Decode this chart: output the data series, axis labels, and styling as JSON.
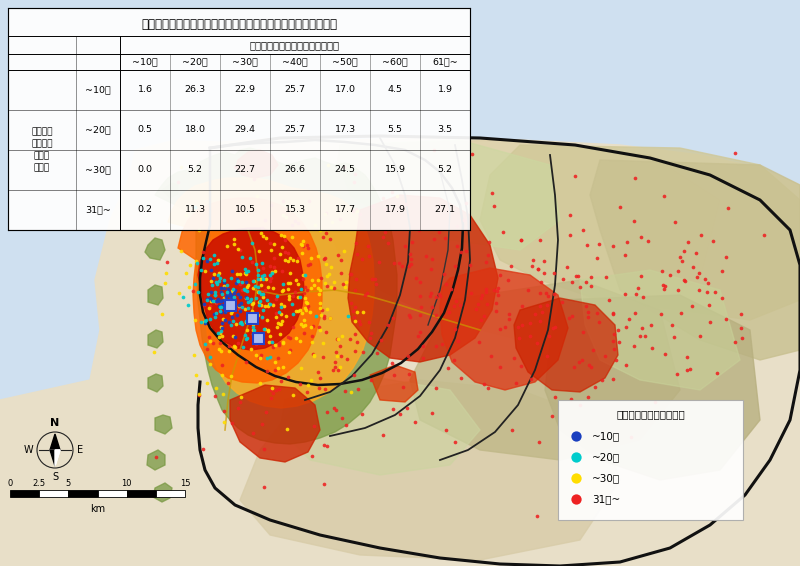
{
  "title": "救急告示病院からの到達圈と実際の搬送時間のクロス表（％）",
  "col_header": "実際の現着から病院着の搬送時間",
  "row_label_main": "救急告示\n医療機関\nからの\n到達圈",
  "col_labels": [
    "~10分",
    "~20分",
    "~30分",
    "~40分",
    "~50分",
    "~60分",
    "61分~"
  ],
  "row_labels": [
    "~10分",
    "~20分",
    "~30分",
    "31分~"
  ],
  "table_data": [
    [
      1.6,
      26.3,
      22.9,
      25.7,
      17.0,
      4.5,
      1.9
    ],
    [
      0.5,
      18.0,
      29.4,
      25.7,
      17.3,
      5.5,
      3.5
    ],
    [
      0.0,
      5.2,
      22.7,
      26.6,
      24.5,
      15.9,
      5.2
    ],
    [
      0.2,
      11.3,
      10.5,
      15.3,
      17.7,
      17.9,
      27.1
    ]
  ],
  "legend_title": "現場着から病院着の時間",
  "legend_items": [
    {
      "label": "~10分",
      "color": "#1a3fbf"
    },
    {
      "label": "~20分",
      "color": "#00cccc"
    },
    {
      "label": "~30分",
      "color": "#ffdd00"
    },
    {
      "label": "31分~",
      "color": "#ee2222"
    }
  ],
  "scale_label": "km",
  "bg_color": "#cfe0f0",
  "land_color": "#e8dfc8",
  "zone_colors": [
    "#7a9944",
    "#ffaa22",
    "#ff6600",
    "#cc1100"
  ],
  "north_color": "#222222",
  "border_color": "#222222"
}
